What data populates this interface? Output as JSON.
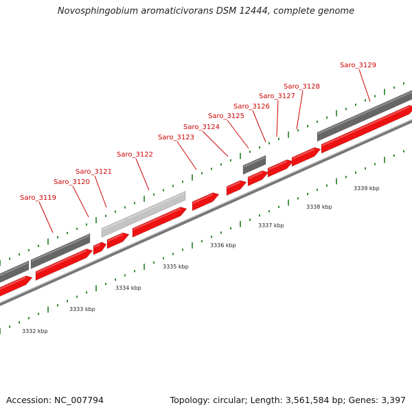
{
  "title": "Novosphingobium aromaticivorans DSM 12444, complete genome",
  "accession_text": "Accession: NC_007794",
  "summary_text": "Topology: circular; Length: 3,561,584 bp; Genes: 3,397",
  "colors": {
    "cds": "#ee1111",
    "gene": "#666666",
    "pseudo": "#c4c4c4",
    "backbone": "#888888",
    "tick": "#1e7a1e",
    "label": "#cc0000"
  },
  "kbp_markers": [
    "3332 kbp",
    "3333 kbp",
    "3334 kbp",
    "3335 kbp",
    "3336 kbp",
    "3337 kbp",
    "3338 kbp",
    "3339 kbp"
  ],
  "features": [
    {
      "label": "Saro_3119",
      "kind": "cds"
    },
    {
      "label": "Saro_3120",
      "kind": "cds"
    },
    {
      "label": "Saro_3121",
      "kind": "pseudo"
    },
    {
      "label": "Saro_3122",
      "kind": "pseudo"
    },
    {
      "label": "Saro_3123",
      "kind": "cds"
    },
    {
      "label": "Saro_3124",
      "kind": "cds"
    },
    {
      "label": "Saro_3125",
      "kind": "gene"
    },
    {
      "label": "Saro_3126",
      "kind": "cds"
    },
    {
      "label": "Saro_3127",
      "kind": "cds"
    },
    {
      "label": "Saro_3128",
      "kind": "cds"
    },
    {
      "label": "Saro_3129",
      "kind": "gene"
    }
  ]
}
